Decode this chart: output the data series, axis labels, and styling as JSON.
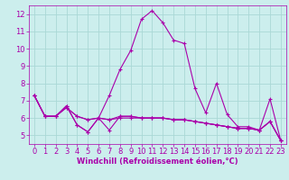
{
  "xlabel": "Windchill (Refroidissement éolien,°C)",
  "background_color": "#cceeed",
  "grid_color": "#aad8d6",
  "line_color": "#aa00aa",
  "x": [
    0,
    1,
    2,
    3,
    4,
    5,
    6,
    7,
    8,
    9,
    10,
    11,
    12,
    13,
    14,
    15,
    16,
    17,
    18,
    19,
    20,
    21,
    22,
    23
  ],
  "series": [
    [
      7.3,
      6.1,
      6.1,
      6.7,
      5.6,
      5.2,
      6.0,
      5.3,
      6.1,
      6.1,
      6.0,
      6.0,
      6.0,
      5.9,
      5.9,
      5.8,
      5.7,
      5.6,
      5.5,
      5.4,
      5.4,
      5.3,
      5.8,
      4.7
    ],
    [
      7.3,
      6.1,
      6.1,
      6.7,
      5.6,
      5.2,
      6.0,
      7.3,
      8.8,
      9.9,
      11.7,
      12.2,
      11.5,
      10.5,
      10.3,
      7.7,
      6.3,
      8.0,
      6.2,
      5.5,
      5.5,
      5.3,
      7.1,
      4.7
    ],
    [
      7.3,
      6.1,
      6.1,
      6.6,
      6.1,
      5.9,
      6.0,
      5.9,
      6.1,
      6.1,
      6.0,
      6.0,
      6.0,
      5.9,
      5.9,
      5.8,
      5.7,
      5.6,
      5.5,
      5.4,
      5.4,
      5.3,
      5.8,
      4.7
    ],
    [
      7.3,
      6.1,
      6.1,
      6.6,
      6.1,
      5.9,
      6.0,
      5.9,
      6.0,
      6.0,
      6.0,
      6.0,
      6.0,
      5.9,
      5.9,
      5.8,
      5.7,
      5.6,
      5.5,
      5.4,
      5.4,
      5.3,
      5.8,
      4.7
    ]
  ],
  "ylim": [
    4.5,
    12.5
  ],
  "xlim": [
    -0.5,
    23.5
  ],
  "yticks": [
    5,
    6,
    7,
    8,
    9,
    10,
    11,
    12
  ],
  "xticks": [
    0,
    1,
    2,
    3,
    4,
    5,
    6,
    7,
    8,
    9,
    10,
    11,
    12,
    13,
    14,
    15,
    16,
    17,
    18,
    19,
    20,
    21,
    22,
    23
  ],
  "marker": "+",
  "markersize": 3,
  "linewidth": 0.8,
  "fontsize_label": 6,
  "fontsize_tick": 6
}
